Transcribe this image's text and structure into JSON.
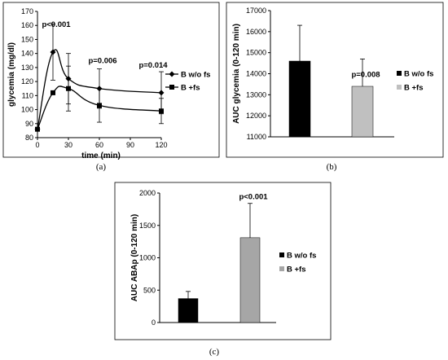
{
  "panels": [
    "(a)",
    "(b)",
    "(c)"
  ],
  "chart_data": [
    {
      "type": "line",
      "xlabel": "time (min)",
      "ylabel": "glycemia (mg/dl)",
      "ylim": [
        80,
        170
      ],
      "yticks": [
        80,
        90,
        100,
        110,
        120,
        130,
        140,
        150,
        160,
        170
      ],
      "xticks": [
        0,
        30,
        60,
        90,
        120
      ],
      "xlim": [
        0,
        120
      ],
      "grid": false,
      "legend": "right",
      "series": [
        {
          "name": "B w/o fs",
          "marker": "diamond",
          "x": [
            0,
            15,
            30,
            60,
            120
          ],
          "y": [
            86,
            141,
            122,
            115,
            112
          ],
          "err": [
            0,
            20,
            18,
            14,
            15
          ]
        },
        {
          "name": "B +fs",
          "marker": "square",
          "x": [
            0,
            15,
            30,
            60,
            120
          ],
          "y": [
            86,
            112,
            115,
            103,
            99
          ],
          "err": [
            0,
            0,
            16,
            12,
            9
          ]
        }
      ],
      "annotations": [
        {
          "text": "p<0.001",
          "x": 15,
          "y": 159
        },
        {
          "text": "p=0.006",
          "x": 60,
          "y": 133
        },
        {
          "text": "p=0.014",
          "x": 120,
          "y": 130
        }
      ]
    },
    {
      "type": "bar",
      "ylabel": "AUC glycemia  (0-120 min)",
      "ylim": [
        11000,
        17000
      ],
      "yticks": [
        11000,
        12000,
        13000,
        14000,
        15000,
        16000,
        17000
      ],
      "grid": false,
      "legend": "right",
      "series": [
        {
          "name": "B w/o fs",
          "value": 14600,
          "err": 1700,
          "color": "#000000"
        },
        {
          "name": "B +fs",
          "value": 13400,
          "err": 1300,
          "color": "#c0c0c0"
        }
      ],
      "annotations": [
        {
          "text": "p=0.008"
        }
      ]
    },
    {
      "type": "bar",
      "ylabel": "AUC ABAp  (0-120 min)",
      "ylim": [
        0,
        2000
      ],
      "yticks": [
        0,
        500,
        1000,
        1500,
        2000
      ],
      "grid": false,
      "legend": "right",
      "series": [
        {
          "name": "B w/o fs",
          "value": 370,
          "err": 110,
          "color": "#000000"
        },
        {
          "name": "B +fs",
          "value": 1310,
          "err": 530,
          "color": "#a6a6a6"
        }
      ],
      "annotations": [
        {
          "text": "p<0.001"
        }
      ]
    }
  ]
}
